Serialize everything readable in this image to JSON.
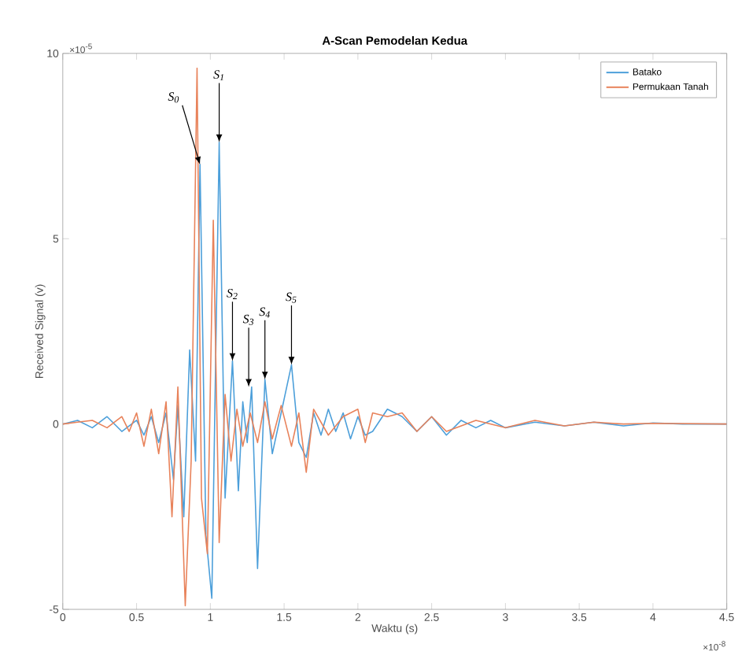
{
  "chart_data": {
    "type": "line",
    "title": "A-Scan Pemodelan Kedua",
    "xlabel": "Waktu (s)",
    "ylabel": "Received Signal (v)",
    "xlim": [
      0,
      4.5
    ],
    "ylim": [
      -5,
      10
    ],
    "xticks": [
      0,
      0.5,
      1,
      1.5,
      2,
      2.5,
      3,
      3.5,
      4,
      4.5
    ],
    "yticks": [
      -5,
      0,
      5,
      10
    ],
    "grid": false,
    "legend": "top right",
    "line_style": "solid",
    "marker": "none",
    "series": [
      {
        "name": "Batako",
        "color": "#4c9fda",
        "x": [
          0,
          0.1,
          0.2,
          0.3,
          0.4,
          0.5,
          0.55,
          0.6,
          0.65,
          0.7,
          0.75,
          0.78,
          0.82,
          0.86,
          0.9,
          0.93,
          0.97,
          1.01,
          1.06,
          1.1,
          1.15,
          1.19,
          1.22,
          1.25,
          1.28,
          1.32,
          1.37,
          1.42,
          1.48,
          1.55,
          1.6,
          1.65,
          1.7,
          1.75,
          1.8,
          1.85,
          1.9,
          1.95,
          2.0,
          2.05,
          2.1,
          2.2,
          2.3,
          2.4,
          2.5,
          2.6,
          2.7,
          2.8,
          2.9,
          3.0,
          3.2,
          3.4,
          3.6,
          3.8,
          4.0,
          4.2,
          4.5
        ],
        "values": [
          0,
          0.1,
          -0.1,
          0.2,
          -0.2,
          0.1,
          -0.3,
          0.2,
          -0.5,
          0.3,
          -1.5,
          0.5,
          -2.5,
          2.0,
          -1.0,
          7.0,
          -3.0,
          -4.7,
          7.6,
          -2.0,
          1.7,
          -1.8,
          0.6,
          -0.5,
          1.0,
          -3.9,
          1.2,
          -0.8,
          0.3,
          1.6,
          -0.5,
          -0.9,
          0.3,
          -0.3,
          0.4,
          -0.2,
          0.3,
          -0.4,
          0.2,
          -0.3,
          -0.2,
          0.4,
          0.2,
          -0.2,
          0.2,
          -0.3,
          0.1,
          -0.1,
          0.1,
          -0.1,
          0.05,
          -0.05,
          0.05,
          -0.05,
          0.03,
          0,
          0
        ]
      },
      {
        "name": "Permukaan Tanah",
        "color": "#e8825a",
        "x": [
          0,
          0.1,
          0.2,
          0.3,
          0.4,
          0.45,
          0.5,
          0.55,
          0.6,
          0.65,
          0.7,
          0.74,
          0.78,
          0.83,
          0.87,
          0.91,
          0.94,
          0.98,
          1.02,
          1.06,
          1.1,
          1.14,
          1.18,
          1.22,
          1.27,
          1.32,
          1.37,
          1.42,
          1.48,
          1.55,
          1.6,
          1.65,
          1.7,
          1.8,
          1.9,
          2.0,
          2.05,
          2.1,
          2.2,
          2.3,
          2.4,
          2.5,
          2.6,
          2.8,
          3.0,
          3.2,
          3.4,
          3.6,
          3.8,
          4.0,
          4.5
        ],
        "values": [
          0,
          0.05,
          0.1,
          -0.1,
          0.2,
          -0.2,
          0.3,
          -0.6,
          0.4,
          -0.8,
          0.6,
          -2.5,
          1.0,
          -4.9,
          -1.0,
          9.6,
          -2.0,
          -3.5,
          5.5,
          -3.2,
          0.8,
          -1.0,
          0.4,
          -0.6,
          0.3,
          -0.5,
          0.6,
          -0.4,
          0.5,
          -0.6,
          0.3,
          -1.3,
          0.4,
          -0.3,
          0.2,
          0.4,
          -0.5,
          0.3,
          0.2,
          0.3,
          -0.2,
          0.2,
          -0.2,
          0.1,
          -0.1,
          0.1,
          -0.05,
          0.05,
          0,
          0.02,
          0
        ]
      }
    ],
    "annotations": [
      "×10$^{-5}$",
      "×10$^{-8}$",
      {
        "text": "S$_{0}$",
        "x": 0.93,
        "y": 7.0
      },
      {
        "text": "S$_{1}$",
        "x": 1.06,
        "y": 7.6
      },
      {
        "text": "S$_{2}$",
        "x": 1.15,
        "y": 1.7
      },
      {
        "text": "S$_{3}$",
        "x": 1.26,
        "y": 1.0
      },
      {
        "text": "S$_{4}$",
        "x": 1.37,
        "y": 1.2
      },
      {
        "text": "S$_{5}$",
        "x": 1.55,
        "y": 1.6
      }
    ]
  }
}
